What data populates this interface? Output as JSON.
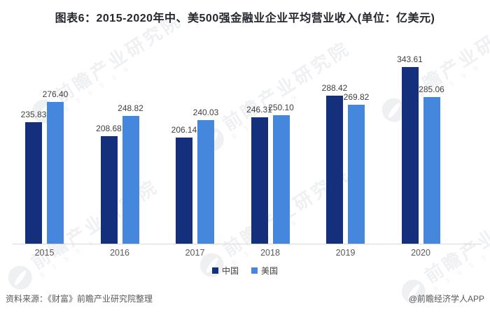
{
  "title": "图表6：2015-2020年中、美500强金融业企业平均营业收入(单位：亿美元)",
  "chart_data": {
    "type": "bar",
    "title": "图表6：2015-2020年中、美500强金融业企业平均营业收入(单位：亿美元)",
    "unit": "亿美元",
    "categories": [
      "2015",
      "2016",
      "2017",
      "2018",
      "2019",
      "2020"
    ],
    "series": [
      {
        "name": "中国",
        "key": "china",
        "color": "#14307d",
        "values": [
          235.83,
          208.68,
          206.14,
          246.31,
          288.42,
          343.61
        ]
      },
      {
        "name": "美国",
        "key": "usa",
        "color": "#4487dc",
        "values": [
          276.4,
          248.82,
          240.03,
          250.1,
          269.82,
          285.06
        ]
      }
    ],
    "ylim": [
      0,
      360
    ],
    "grid": false,
    "value_labels": true,
    "value_label_decimals": 2,
    "legend_position": "bottom"
  },
  "colors": {
    "china_bar": "#14307d",
    "usa_bar": "#4487dc",
    "axis_line": "#d9d9d9",
    "value_label": "#404040",
    "tick_label": "#595959",
    "title_text": "#26272e",
    "footer_text": "#595959"
  },
  "legend": {
    "items": [
      "中国",
      "美国"
    ]
  },
  "watermark": {
    "text": "前瞻产业研究院",
    "code": "8 3 9 5 9 9"
  },
  "footer": {
    "source": "资料来源：《财富》前瞻产业研究院整理",
    "credit": "@前瞻经济学人APP"
  }
}
